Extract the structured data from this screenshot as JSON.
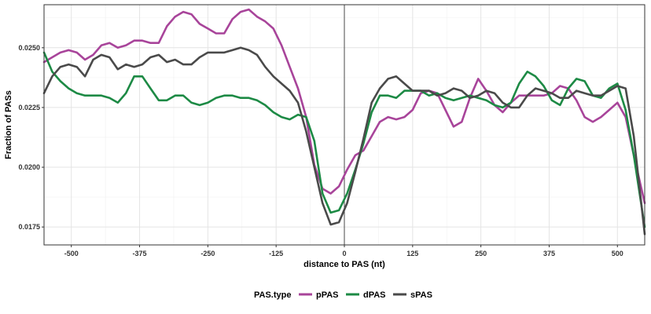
{
  "chart_data": {
    "type": "line",
    "title": "",
    "xlabel": "distance to PAS (nt)",
    "ylabel": "Fraction of PASs",
    "xlim": [
      -550,
      550
    ],
    "ylim": [
      0.01675,
      0.0268
    ],
    "x_ticks": [
      -500,
      -375,
      -250,
      -125,
      0,
      125,
      250,
      375,
      500
    ],
    "x_tick_labels": [
      "-500",
      "-375",
      "-250",
      "-125",
      "0",
      "125",
      "250",
      "375",
      "500"
    ],
    "y_ticks": [
      0.0175,
      0.02,
      0.0225,
      0.025
    ],
    "y_tick_labels": [
      "0.0175",
      "0.0200",
      "0.0225",
      "0.0250"
    ],
    "vline": 0,
    "grid": true,
    "legend": {
      "title": "PAS.type",
      "position": "bottom"
    },
    "series": [
      {
        "name": "pPAS",
        "color": "#a8449a",
        "x": [
          -550,
          -535,
          -520,
          -505,
          -490,
          -475,
          -460,
          -445,
          -430,
          -415,
          -400,
          -385,
          -370,
          -355,
          -340,
          -325,
          -310,
          -295,
          -280,
          -265,
          -250,
          -235,
          -220,
          -205,
          -190,
          -175,
          -160,
          -145,
          -130,
          -115,
          -100,
          -85,
          -70,
          -55,
          -40,
          -25,
          -10,
          5,
          20,
          35,
          50,
          65,
          80,
          95,
          110,
          125,
          140,
          155,
          170,
          185,
          200,
          215,
          230,
          245,
          260,
          275,
          290,
          305,
          320,
          335,
          350,
          365,
          380,
          395,
          410,
          425,
          440,
          455,
          470,
          485,
          500,
          515,
          530,
          550
        ],
        "y": [
          0.0244,
          0.0246,
          0.0248,
          0.0249,
          0.0248,
          0.0245,
          0.0247,
          0.0251,
          0.0252,
          0.025,
          0.0251,
          0.0253,
          0.0253,
          0.0252,
          0.0252,
          0.0259,
          0.0263,
          0.0265,
          0.0264,
          0.026,
          0.0258,
          0.0256,
          0.0256,
          0.0262,
          0.0265,
          0.0266,
          0.0263,
          0.0261,
          0.0258,
          0.0251,
          0.0242,
          0.0233,
          0.0221,
          0.0201,
          0.0191,
          0.0189,
          0.0192,
          0.0199,
          0.0205,
          0.0207,
          0.0213,
          0.0219,
          0.0221,
          0.022,
          0.0221,
          0.0224,
          0.0231,
          0.0232,
          0.0231,
          0.0224,
          0.0217,
          0.0219,
          0.0229,
          0.0237,
          0.0232,
          0.0226,
          0.0223,
          0.0227,
          0.023,
          0.023,
          0.023,
          0.023,
          0.0231,
          0.0234,
          0.0233,
          0.0228,
          0.0221,
          0.0219,
          0.0221,
          0.0224,
          0.0227,
          0.0221,
          0.0205,
          0.0185
        ]
      },
      {
        "name": "dPAS",
        "color": "#1d8a45",
        "x": [
          -550,
          -535,
          -520,
          -505,
          -490,
          -475,
          -460,
          -445,
          -430,
          -415,
          -400,
          -385,
          -370,
          -355,
          -340,
          -325,
          -310,
          -295,
          -280,
          -265,
          -250,
          -235,
          -220,
          -205,
          -190,
          -175,
          -160,
          -145,
          -130,
          -115,
          -100,
          -85,
          -70,
          -55,
          -40,
          -25,
          -10,
          5,
          20,
          35,
          50,
          65,
          80,
          95,
          110,
          125,
          140,
          155,
          170,
          185,
          200,
          215,
          230,
          245,
          260,
          275,
          290,
          305,
          320,
          335,
          350,
          365,
          380,
          395,
          410,
          425,
          440,
          455,
          470,
          485,
          500,
          515,
          530,
          550
        ],
        "y": [
          0.0248,
          0.024,
          0.0236,
          0.0233,
          0.0231,
          0.023,
          0.023,
          0.023,
          0.0229,
          0.0227,
          0.0231,
          0.0238,
          0.0238,
          0.0233,
          0.0228,
          0.0228,
          0.023,
          0.023,
          0.0227,
          0.0226,
          0.0227,
          0.0229,
          0.023,
          0.023,
          0.0229,
          0.0229,
          0.0228,
          0.0226,
          0.0223,
          0.0221,
          0.022,
          0.0222,
          0.0221,
          0.0211,
          0.0189,
          0.0181,
          0.0182,
          0.0189,
          0.0199,
          0.021,
          0.0223,
          0.023,
          0.023,
          0.0229,
          0.0232,
          0.0232,
          0.0232,
          0.023,
          0.0231,
          0.0229,
          0.0228,
          0.0229,
          0.023,
          0.0229,
          0.0228,
          0.0226,
          0.0225,
          0.0227,
          0.0235,
          0.024,
          0.0238,
          0.0234,
          0.0228,
          0.0226,
          0.0233,
          0.0237,
          0.0236,
          0.023,
          0.0229,
          0.0233,
          0.0235,
          0.0224,
          0.0205,
          0.0175
        ]
      },
      {
        "name": "sPAS",
        "color": "#4a4a4a",
        "x": [
          -550,
          -535,
          -520,
          -505,
          -490,
          -475,
          -460,
          -445,
          -430,
          -415,
          -400,
          -385,
          -370,
          -355,
          -340,
          -325,
          -310,
          -295,
          -280,
          -265,
          -250,
          -235,
          -220,
          -205,
          -190,
          -175,
          -160,
          -145,
          -130,
          -115,
          -100,
          -85,
          -70,
          -55,
          -40,
          -25,
          -10,
          5,
          20,
          35,
          50,
          65,
          80,
          95,
          110,
          125,
          140,
          155,
          170,
          185,
          200,
          215,
          230,
          245,
          260,
          275,
          290,
          305,
          320,
          335,
          350,
          365,
          380,
          395,
          410,
          425,
          440,
          455,
          470,
          485,
          500,
          515,
          530,
          550
        ],
        "y": [
          0.0231,
          0.0238,
          0.0242,
          0.0243,
          0.0242,
          0.0238,
          0.0245,
          0.0247,
          0.0246,
          0.0241,
          0.0243,
          0.0242,
          0.0243,
          0.0246,
          0.0247,
          0.0244,
          0.0245,
          0.0243,
          0.0243,
          0.0246,
          0.0248,
          0.0248,
          0.0248,
          0.0249,
          0.025,
          0.0249,
          0.0247,
          0.0242,
          0.0238,
          0.0235,
          0.0232,
          0.0227,
          0.0215,
          0.02,
          0.0185,
          0.0176,
          0.0177,
          0.0185,
          0.0198,
          0.0212,
          0.0227,
          0.0233,
          0.0237,
          0.0238,
          0.0235,
          0.0232,
          0.0232,
          0.0232,
          0.023,
          0.0231,
          0.0233,
          0.0232,
          0.0229,
          0.023,
          0.0232,
          0.0231,
          0.0227,
          0.0225,
          0.0225,
          0.023,
          0.0233,
          0.0232,
          0.0231,
          0.0229,
          0.0229,
          0.0232,
          0.0231,
          0.023,
          0.023,
          0.0232,
          0.0234,
          0.0233,
          0.0213,
          0.0172
        ]
      }
    ]
  }
}
